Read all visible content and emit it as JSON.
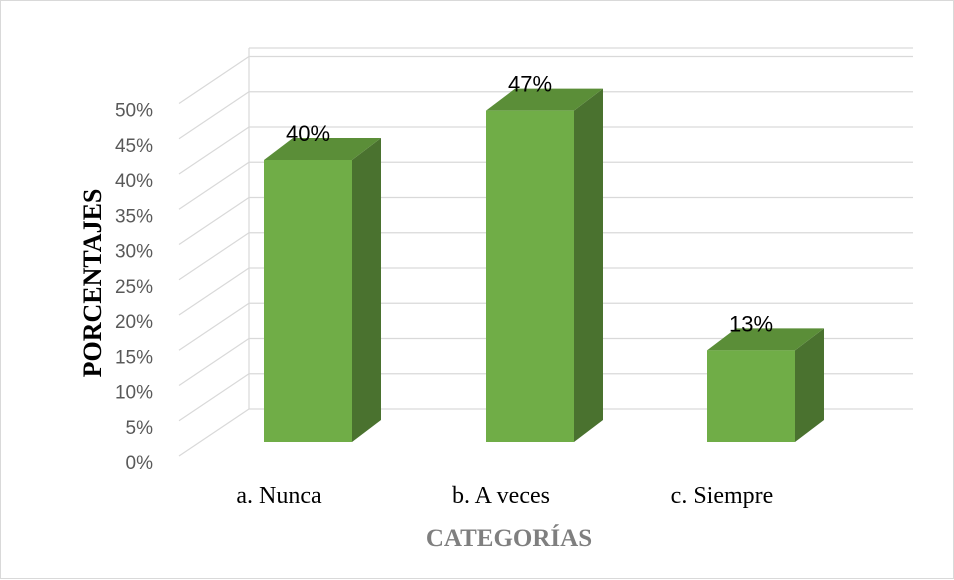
{
  "chart_data": {
    "type": "bar",
    "style": "3d-column",
    "categories": [
      "a. Nunca",
      "b. A veces",
      "c. Siempre"
    ],
    "values": [
      40,
      47,
      13
    ],
    "data_labels": [
      "40%",
      "47%",
      "13%"
    ],
    "y_ticks": [
      "0%",
      "5%",
      "10%",
      "15%",
      "20%",
      "25%",
      "30%",
      "35%",
      "40%",
      "45%",
      "50%"
    ],
    "ylim": [
      0,
      50
    ],
    "xlabel": "CATEGORÍAS",
    "ylabel": "PORCENTAJES",
    "grid": true,
    "legend": false,
    "colors": {
      "bar_front": "#70ad47",
      "bar_side": "#4a722f",
      "bar_top": "#5b8e38",
      "grid": "#d9d9d9",
      "axis_text": "#595959",
      "xtitle": "#7f7f7f"
    }
  }
}
